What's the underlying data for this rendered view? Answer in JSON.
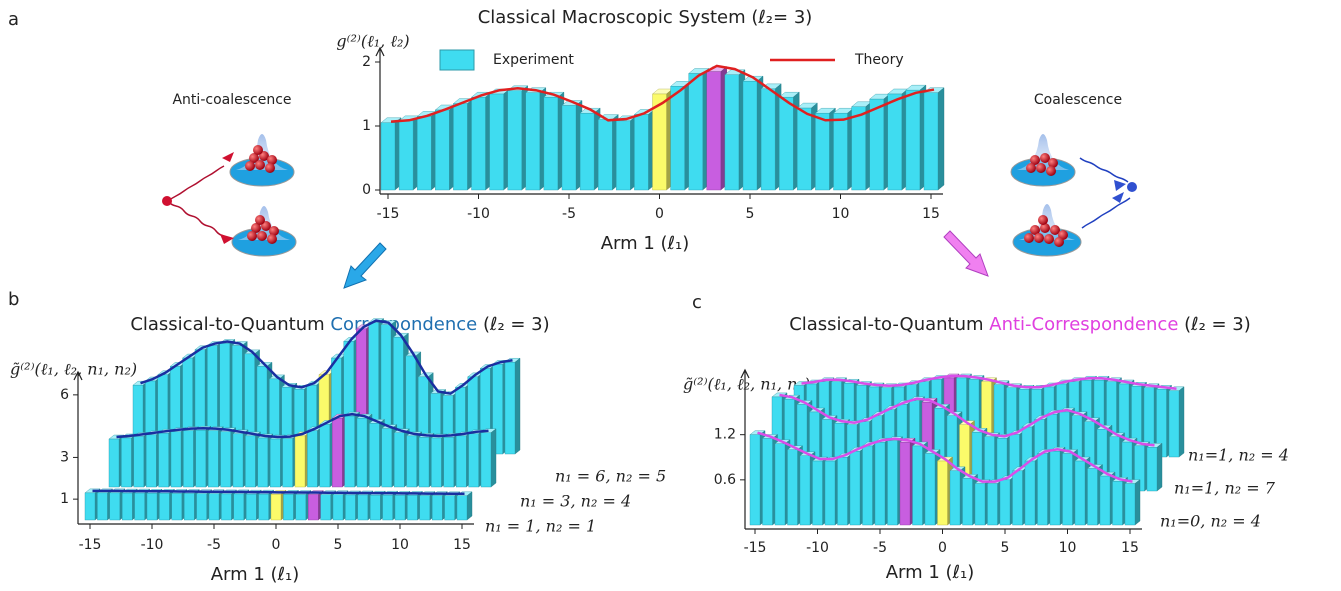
{
  "chart_data": [
    {
      "type": "bar",
      "panel": "a",
      "title": "Classical Macroscopic System (ℓ₂= 3)",
      "y_label": "g⁽²⁾(ℓ₁, ℓ₂)",
      "x_label": "Arm 1  (ℓ₁)",
      "annotations": [
        "Anti-coalescence",
        "Coalescence"
      ],
      "x": [
        -15,
        -14,
        -13,
        -12,
        -11,
        -10,
        -9,
        -8,
        -7,
        -6,
        -5,
        -4,
        -3,
        -2,
        -1,
        0,
        1,
        2,
        3,
        4,
        5,
        6,
        7,
        8,
        9,
        10,
        11,
        12,
        13,
        14,
        15
      ],
      "xticks": [
        -15,
        -10,
        -5,
        0,
        5,
        10,
        15
      ],
      "ylim": [
        0,
        2
      ],
      "yticks": [
        0,
        1,
        2
      ],
      "highlight": [
        {
          "x": 0,
          "color": "#fbfb6a"
        },
        {
          "x": 3,
          "color": "#c85ee0"
        }
      ],
      "series": [
        {
          "name": "Experiment",
          "color": "#3fdcf0",
          "values": [
            1.05,
            1.08,
            1.15,
            1.25,
            1.35,
            1.45,
            1.5,
            1.55,
            1.52,
            1.45,
            1.32,
            1.2,
            1.1,
            1.08,
            1.18,
            1.5,
            1.62,
            1.82,
            1.85,
            1.8,
            1.7,
            1.58,
            1.45,
            1.28,
            1.2,
            1.2,
            1.3,
            1.42,
            1.5,
            1.56,
            1.52
          ]
        },
        {
          "name": "Theory",
          "type": "line",
          "color": "#e02020",
          "values": [
            1.03,
            1.05,
            1.12,
            1.22,
            1.33,
            1.44,
            1.52,
            1.55,
            1.52,
            1.45,
            1.34,
            1.22,
            1.05,
            1.07,
            1.16,
            1.32,
            1.52,
            1.75,
            1.9,
            1.85,
            1.72,
            1.52,
            1.32,
            1.15,
            1.05,
            1.06,
            1.14,
            1.26,
            1.38,
            1.48,
            1.53
          ]
        }
      ]
    },
    {
      "type": "bar3d",
      "panel": "b",
      "title_parts": [
        {
          "text": "Classical-to-Quantum ",
          "color": "#222222"
        },
        {
          "text": "Correspondence",
          "color": "#1f6fb0"
        },
        {
          "text": " (ℓ₂ = 3)",
          "color": "#222222"
        }
      ],
      "y_label": "g̃⁽²⁾(ℓ₁, ℓ₂, n₁, n₂)",
      "x_label": "Arm 1  (ℓ₁)",
      "x": [
        -15,
        -14,
        -13,
        -12,
        -11,
        -10,
        -9,
        -8,
        -7,
        -6,
        -5,
        -4,
        -3,
        -2,
        -1,
        0,
        1,
        2,
        3,
        4,
        5,
        6,
        7,
        8,
        9,
        10,
        11,
        12,
        13,
        14,
        15
      ],
      "xticks": [
        -15,
        -10,
        -5,
        0,
        5,
        10,
        15
      ],
      "ylim": [
        0,
        7
      ],
      "yticks": [
        1,
        3,
        6
      ],
      "line_color": "#1a2fa0",
      "highlight": [
        {
          "x": 0,
          "color": "#fbfb6a"
        },
        {
          "x": 3,
          "color": "#c85ee0"
        }
      ],
      "series": [
        {
          "name": "n₁ = 6, n₂ = 5",
          "color": "#3fdcf0",
          "values": [
            3.3,
            3.5,
            3.8,
            4.2,
            4.6,
            5.0,
            5.2,
            5.3,
            5.2,
            4.8,
            4.2,
            3.6,
            3.2,
            3.1,
            3.3,
            3.8,
            4.6,
            5.4,
            6.0,
            6.3,
            6.2,
            5.6,
            4.7,
            3.7,
            2.9,
            2.8,
            3.2,
            3.7,
            4.1,
            4.3,
            4.4
          ]
        },
        {
          "name": "n₁ = 3, n₂ = 4",
          "color": "#3fdcf0",
          "values": [
            2.3,
            2.35,
            2.42,
            2.5,
            2.58,
            2.65,
            2.7,
            2.72,
            2.7,
            2.65,
            2.55,
            2.45,
            2.35,
            2.3,
            2.32,
            2.45,
            2.7,
            3.0,
            3.3,
            3.4,
            3.3,
            3.05,
            2.8,
            2.6,
            2.45,
            2.38,
            2.35,
            2.38,
            2.45,
            2.55,
            2.6
          ]
        },
        {
          "name": "n₁ = 1, n₂ = 1",
          "color": "#3fdcf0",
          "values": [
            1.3,
            1.3,
            1.3,
            1.29,
            1.29,
            1.28,
            1.28,
            1.27,
            1.27,
            1.26,
            1.26,
            1.25,
            1.25,
            1.24,
            1.24,
            1.23,
            1.23,
            1.22,
            1.22,
            1.21,
            1.21,
            1.2,
            1.2,
            1.19,
            1.19,
            1.18,
            1.18,
            1.17,
            1.17,
            1.16,
            1.16
          ]
        }
      ]
    },
    {
      "type": "bar3d",
      "panel": "c",
      "title_parts": [
        {
          "text": "Classical-to-Quantum ",
          "color": "#222222"
        },
        {
          "text": "Anti-Correspondence",
          "color": "#e040e0"
        },
        {
          "text": " (ℓ₂ = 3)",
          "color": "#222222"
        }
      ],
      "y_label": "g̃⁽²⁾(ℓ₁, ℓ₂, n₁, n₂)",
      "x_label": "Arm 1  (ℓ₁)",
      "x": [
        -15,
        -14,
        -13,
        -12,
        -11,
        -10,
        -9,
        -8,
        -7,
        -6,
        -5,
        -4,
        -3,
        -2,
        -1,
        0,
        1,
        2,
        3,
        4,
        5,
        6,
        7,
        8,
        9,
        10,
        11,
        12,
        13,
        14,
        15
      ],
      "xticks": [
        -15,
        -10,
        -5,
        0,
        5,
        10,
        15
      ],
      "ylim": [
        0,
        1.9
      ],
      "yticks": [
        0.6,
        1.2
      ],
      "line_color": "#d94ee8",
      "highlight": [
        {
          "x": -3,
          "color": "#c85ee0"
        },
        {
          "x": 0,
          "color": "#fbfb6a"
        }
      ],
      "series": [
        {
          "name": "n₁=1, n₂ = 4",
          "color": "#3fdcf0",
          "values": [
            0.95,
            0.97,
            1.0,
            1.0,
            0.98,
            0.95,
            0.93,
            0.92,
            0.93,
            0.96,
            1.0,
            1.03,
            1.05,
            1.05,
            1.03,
            1.0,
            0.96,
            0.92,
            0.9,
            0.9,
            0.93,
            0.97,
            1.0,
            1.02,
            1.02,
            1.0,
            0.97,
            0.94,
            0.92,
            0.9,
            0.88
          ]
        },
        {
          "name": "n₁=1, n₂ = 7",
          "color": "#3fdcf0",
          "values": [
            1.25,
            1.22,
            1.15,
            1.05,
            0.95,
            0.9,
            0.88,
            0.92,
            1.0,
            1.08,
            1.15,
            1.2,
            1.18,
            1.1,
            1.0,
            0.88,
            0.78,
            0.72,
            0.7,
            0.75,
            0.85,
            0.95,
            1.02,
            1.05,
            1.0,
            0.92,
            0.82,
            0.72,
            0.65,
            0.6,
            0.58
          ]
        },
        {
          "name": "n₁=0, n₂ = 4",
          "color": "#3fdcf0",
          "values": [
            1.2,
            1.15,
            1.08,
            1.0,
            0.92,
            0.85,
            0.85,
            0.9,
            0.98,
            1.05,
            1.1,
            1.12,
            1.1,
            1.05,
            0.95,
            0.85,
            0.72,
            0.62,
            0.55,
            0.55,
            0.6,
            0.72,
            0.85,
            0.95,
            0.98,
            0.95,
            0.85,
            0.75,
            0.65,
            0.58,
            0.55
          ]
        }
      ]
    }
  ]
}
